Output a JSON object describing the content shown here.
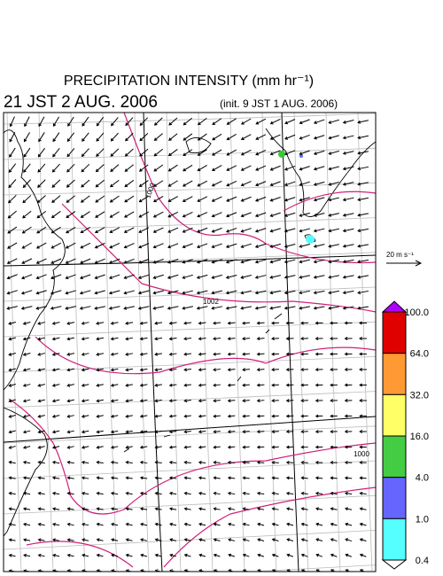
{
  "header": {
    "title": "PRECIPITATION INTENSITY (mm hr⁻¹)",
    "valid_time": "21 JST 2 AUG. 2006",
    "init_time": "(init. 9 JST 1 AUG. 2006)"
  },
  "map": {
    "contour_labels": [
      "1000",
      "1002",
      "1000"
    ],
    "reference_vector": "20 m s⁻¹"
  },
  "colorbar": {
    "labels": [
      "100.0",
      "64.0",
      "32.0",
      "16.0",
      "4.0",
      "1.0",
      "0.4"
    ],
    "colors": [
      "#e00000",
      "#ff9933",
      "#ffff66",
      "#44cc44",
      "#6666ff",
      "#55ffff"
    ]
  }
}
